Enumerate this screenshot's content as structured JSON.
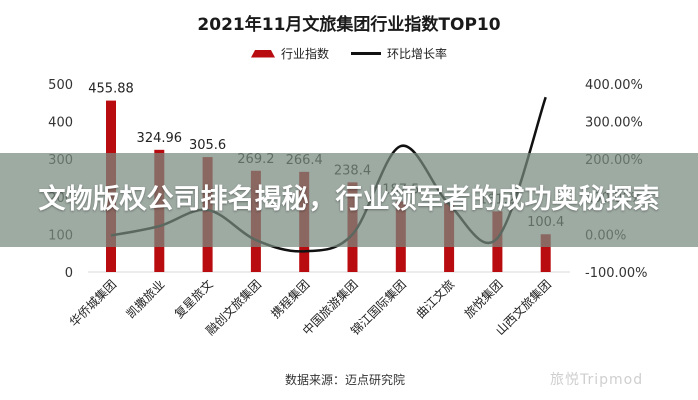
{
  "header": {
    "title": "2021年11月文旅集团行业指数TOP10"
  },
  "legend": {
    "bar_label": "行业指数",
    "line_label": "环比增长率"
  },
  "overlay": {
    "headline": "文物版权公司排名揭秘，行业领军者的成功奥秘探索"
  },
  "footer": {
    "source": "数据来源：迈点研究院",
    "watermark": "旅悦Tripmod"
  },
  "colors": {
    "bar": "#b80c10",
    "line": "#111111",
    "overlay": "#788a80"
  },
  "chart_data": {
    "type": "bar",
    "title": "2021年11月文旅集团行业指数TOP10",
    "xlabel": "",
    "ylabel": "",
    "categories": [
      "华侨城集团",
      "凯撒旅业",
      "复星旅文",
      "融创文旅集团",
      "携程集团",
      "中国旅游集团",
      "锦江国际集团",
      "曲江文旅",
      "旅悦集团",
      "山西文旅集团"
    ],
    "series": [
      {
        "name": "行业指数",
        "type": "bar",
        "axis": "left",
        "values": [
          455.88,
          324.96,
          305.6,
          269.2,
          266.4,
          238.4,
          187.5,
          182,
          161.2,
          100.4
        ],
        "labels": [
          "455.88",
          "324.96",
          "305.6",
          "269.2",
          "266.4",
          "238.4",
          "187.5",
          "",
          "161.2",
          "100.4"
        ]
      },
      {
        "name": "环比增长率",
        "type": "line",
        "axis": "right",
        "unit": "%",
        "values": [
          -3,
          22,
          65,
          -15,
          -45,
          0,
          235,
          80,
          -10,
          365
        ]
      }
    ],
    "left_axis": {
      "ylim": [
        0,
        500
      ],
      "ticks": [
        "0",
        "100",
        "200",
        "300",
        "400",
        "500"
      ]
    },
    "right_axis": {
      "ylim": [
        -100,
        400
      ],
      "ticks": [
        "-100.00%",
        "0.00%",
        "100.00%",
        "200.00%",
        "300.00%",
        "400.00%"
      ]
    },
    "grid": false,
    "legend_position": "top"
  }
}
